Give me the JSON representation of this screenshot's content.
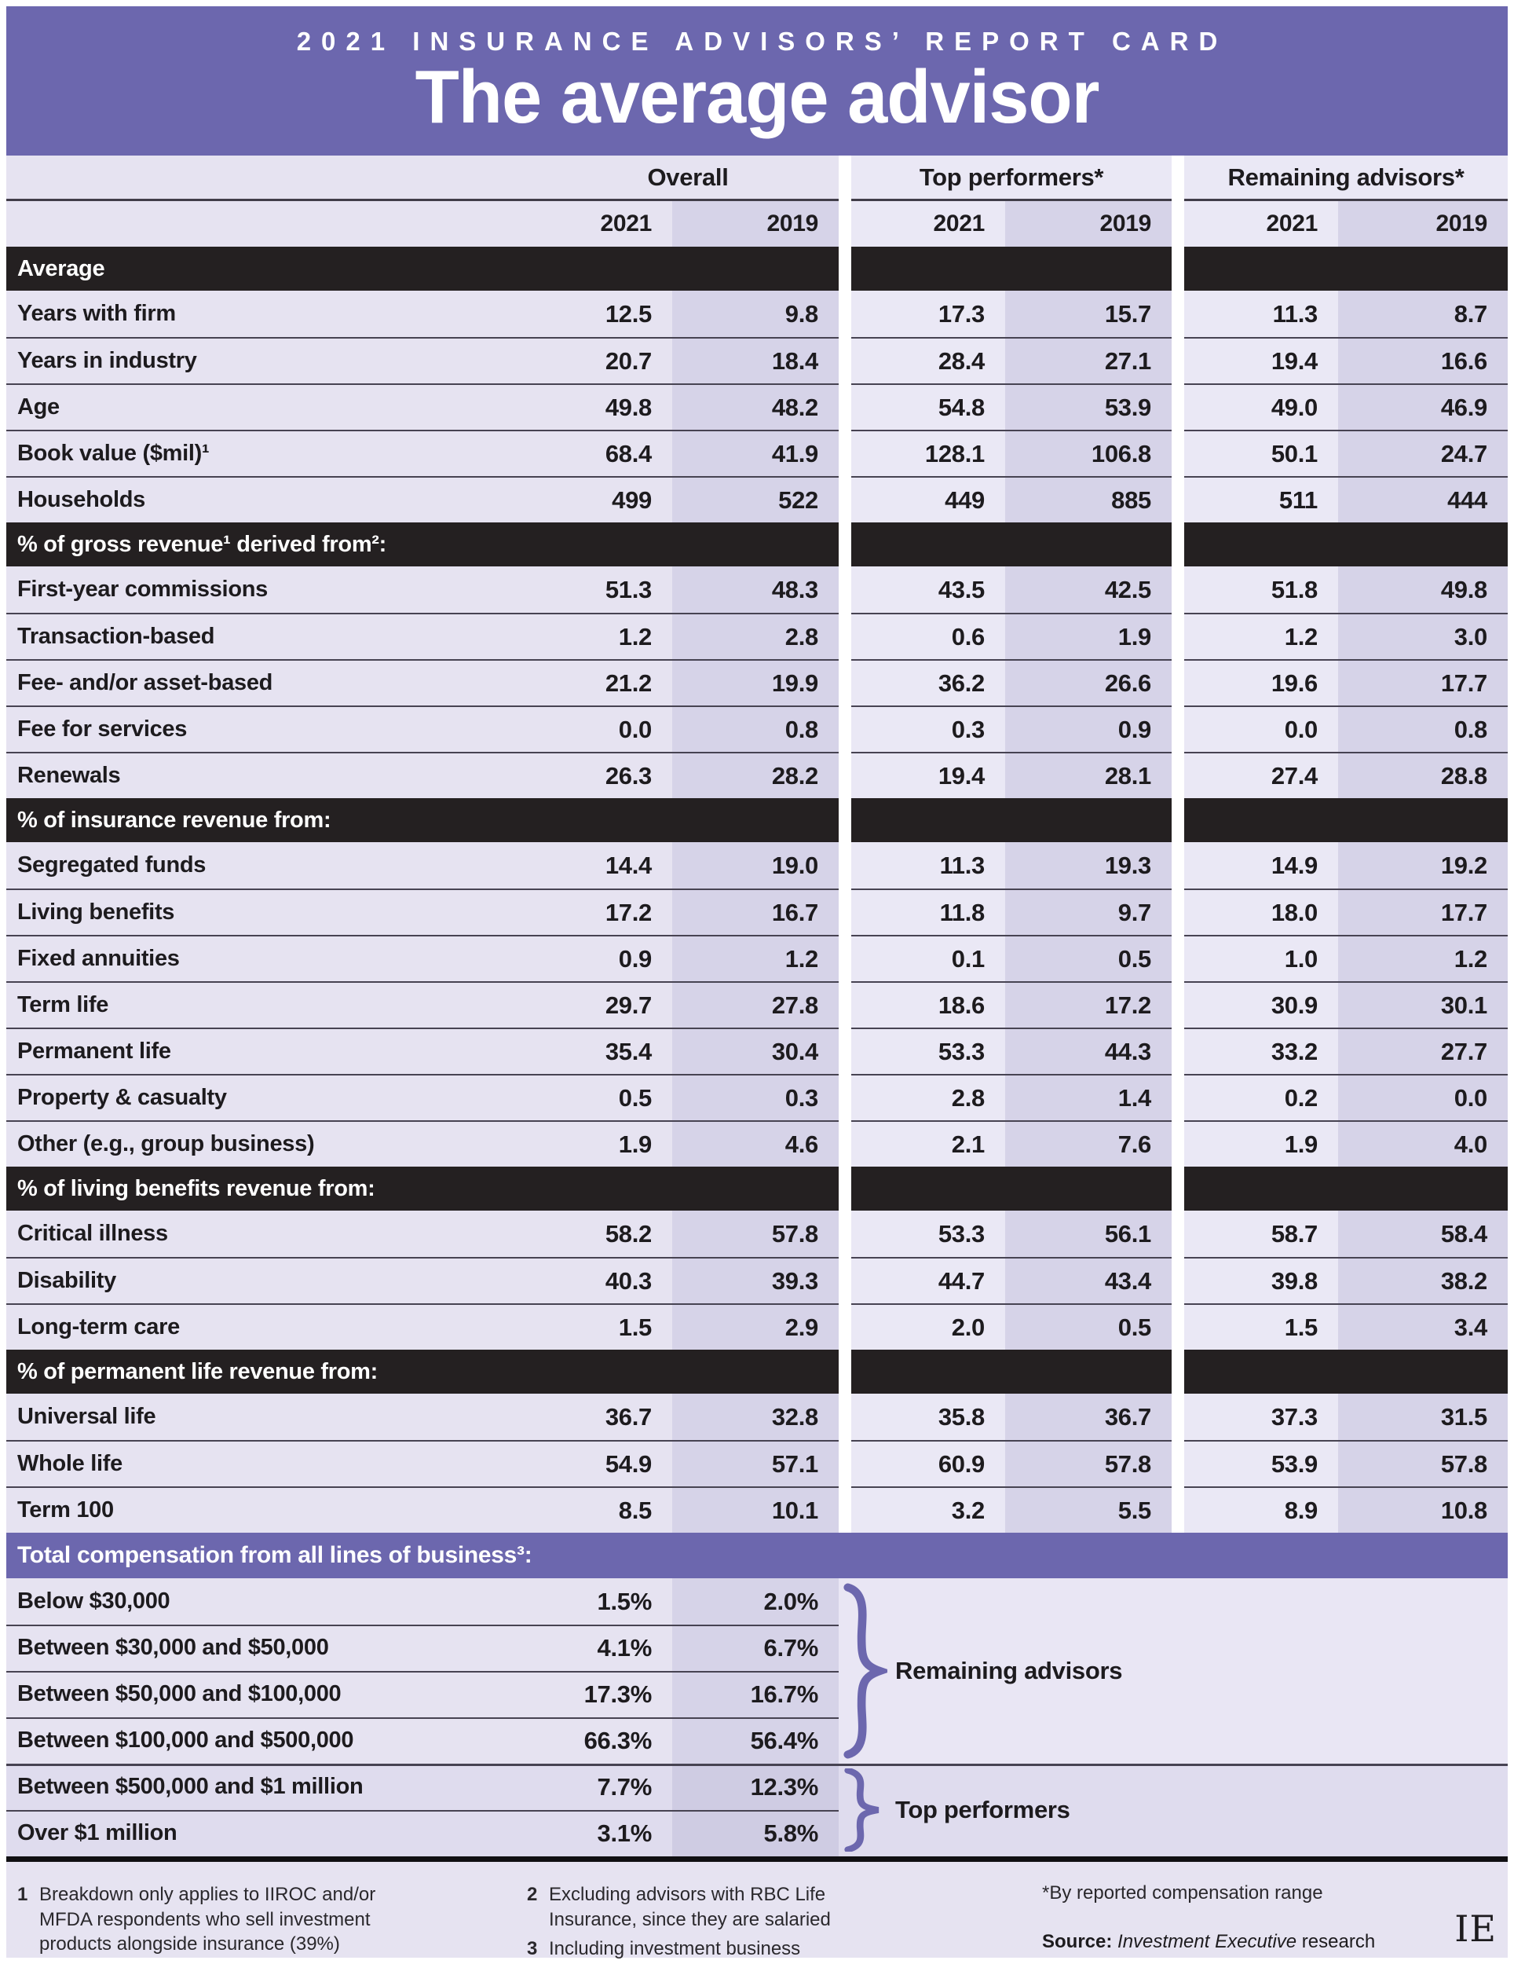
{
  "title": {
    "kicker": "2021 INSURANCE ADVISORS’ REPORT CARD",
    "headline": "The average advisor"
  },
  "columns": {
    "groups": [
      "Overall",
      "Top performers*",
      "Remaining advisors*"
    ],
    "years": [
      "2021",
      "2019"
    ]
  },
  "chart_data": {
    "type": "table",
    "title": "The average advisor",
    "column_groups": [
      "Overall",
      "Top performers*",
      "Remaining advisors*"
    ],
    "columns": [
      "Overall 2021",
      "Overall 2019",
      "Top performers 2021",
      "Top performers 2019",
      "Remaining advisors 2021",
      "Remaining advisors 2019"
    ],
    "sections": [
      {
        "header": "Average",
        "rows": [
          {
            "label": "Years with firm",
            "values": [
              "12.5",
              "9.8",
              "17.3",
              "15.7",
              "11.3",
              "8.7"
            ]
          },
          {
            "label": "Years in industry",
            "values": [
              "20.7",
              "18.4",
              "28.4",
              "27.1",
              "19.4",
              "16.6"
            ]
          },
          {
            "label": "Age",
            "values": [
              "49.8",
              "48.2",
              "54.8",
              "53.9",
              "49.0",
              "46.9"
            ]
          },
          {
            "label": "Book value ($mil)¹",
            "values": [
              "68.4",
              "41.9",
              "128.1",
              "106.8",
              "50.1",
              "24.7"
            ]
          },
          {
            "label": "Households",
            "values": [
              "499",
              "522",
              "449",
              "885",
              "511",
              "444"
            ]
          }
        ]
      },
      {
        "header": "% of gross revenue¹ derived from²:",
        "rows": [
          {
            "label": "First-year commissions",
            "values": [
              "51.3",
              "48.3",
              "43.5",
              "42.5",
              "51.8",
              "49.8"
            ]
          },
          {
            "label": "Transaction-based",
            "values": [
              "1.2",
              "2.8",
              "0.6",
              "1.9",
              "1.2",
              "3.0"
            ]
          },
          {
            "label": "Fee- and/or asset-based",
            "values": [
              "21.2",
              "19.9",
              "36.2",
              "26.6",
              "19.6",
              "17.7"
            ]
          },
          {
            "label": "Fee for services",
            "values": [
              "0.0",
              "0.8",
              "0.3",
              "0.9",
              "0.0",
              "0.8"
            ]
          },
          {
            "label": "Renewals",
            "values": [
              "26.3",
              "28.2",
              "19.4",
              "28.1",
              "27.4",
              "28.8"
            ]
          }
        ]
      },
      {
        "header": "% of insurance revenue from:",
        "rows": [
          {
            "label": "Segregated funds",
            "values": [
              "14.4",
              "19.0",
              "11.3",
              "19.3",
              "14.9",
              "19.2"
            ]
          },
          {
            "label": "Living benefits",
            "values": [
              "17.2",
              "16.7",
              "11.8",
              "9.7",
              "18.0",
              "17.7"
            ]
          },
          {
            "label": "Fixed annuities",
            "values": [
              "0.9",
              "1.2",
              "0.1",
              "0.5",
              "1.0",
              "1.2"
            ]
          },
          {
            "label": "Term life",
            "values": [
              "29.7",
              "27.8",
              "18.6",
              "17.2",
              "30.9",
              "30.1"
            ]
          },
          {
            "label": "Permanent life",
            "values": [
              "35.4",
              "30.4",
              "53.3",
              "44.3",
              "33.2",
              "27.7"
            ]
          },
          {
            "label": "Property & casualty",
            "values": [
              "0.5",
              "0.3",
              "2.8",
              "1.4",
              "0.2",
              "0.0"
            ]
          },
          {
            "label": "Other (e.g., group business)",
            "values": [
              "1.9",
              "4.6",
              "2.1",
              "7.6",
              "1.9",
              "4.0"
            ]
          }
        ]
      },
      {
        "header": "% of living benefits revenue from:",
        "rows": [
          {
            "label": "Critical illness",
            "values": [
              "58.2",
              "57.8",
              "53.3",
              "56.1",
              "58.7",
              "58.4"
            ]
          },
          {
            "label": "Disability",
            "values": [
              "40.3",
              "39.3",
              "44.7",
              "43.4",
              "39.8",
              "38.2"
            ]
          },
          {
            "label": "Long-term care",
            "values": [
              "1.5",
              "2.9",
              "2.0",
              "0.5",
              "1.5",
              "3.4"
            ]
          }
        ]
      },
      {
        "header": "% of permanent life revenue from:",
        "rows": [
          {
            "label": "Universal life",
            "values": [
              "36.7",
              "32.8",
              "35.8",
              "36.7",
              "37.3",
              "31.5"
            ]
          },
          {
            "label": "Whole life",
            "values": [
              "54.9",
              "57.1",
              "60.9",
              "57.8",
              "53.9",
              "57.8"
            ]
          },
          {
            "label": "Term 100",
            "values": [
              "8.5",
              "10.1",
              "3.2",
              "5.5",
              "8.9",
              "10.8"
            ]
          }
        ]
      },
      {
        "header": "Total compensation from all lines of business³:",
        "style": "purple",
        "rows": [
          {
            "label": "Below $30,000",
            "values": [
              "1.5%",
              "2.0%"
            ]
          },
          {
            "label": "Between $30,000 and $50,000",
            "values": [
              "4.1%",
              "6.7%"
            ]
          },
          {
            "label": "Between $50,000 and $100,000",
            "values": [
              "17.3%",
              "16.7%"
            ]
          },
          {
            "label": "Between $100,000 and $500,000",
            "values": [
              "66.3%",
              "56.4%"
            ]
          },
          {
            "label": "Between $500,000 and $1 million",
            "values": [
              "7.7%",
              "12.3%"
            ]
          },
          {
            "label": "Over $1 million",
            "values": [
              "3.1%",
              "5.8%"
            ]
          }
        ],
        "annotations": [
          {
            "label": "Remaining advisors",
            "rows": [
              0,
              3
            ]
          },
          {
            "label": "Top performers",
            "rows": [
              4,
              5
            ]
          }
        ]
      }
    ]
  },
  "footnotes": [
    {
      "num": "1",
      "text": "Breakdown only applies to IIROC and/or MFDA respondents who sell investment products alongside insurance (39%)"
    },
    {
      "num": "2",
      "text": "Excluding advisors with RBC Life Insurance, since they are salaried"
    },
    {
      "num": "3",
      "text": "Including investment business"
    }
  ],
  "star_note": "*By reported compensation range",
  "source": {
    "label": "Source: ",
    "name": "Investment Executive",
    "rest": " research"
  },
  "logo": "IE",
  "colors": {
    "banner_purple": "#6c67ae",
    "section_bar_black": "#242021",
    "row_light": "#e6e3f1",
    "row_light_alt": "#eae8f5",
    "column_2019_shade": "#d6d3e8",
    "comp_bottom_tint": "#dfdcee",
    "brace_purple": "#6c67ae",
    "text": "#1d1b1e"
  }
}
